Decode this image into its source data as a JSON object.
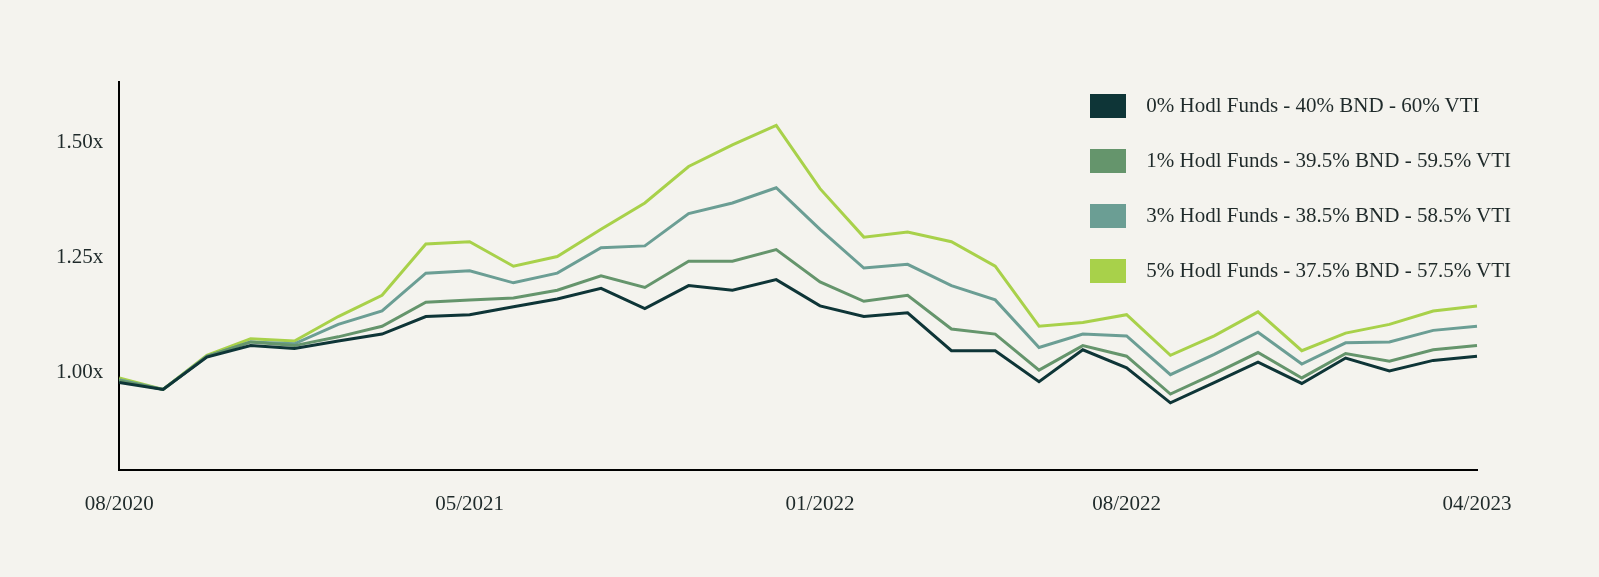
{
  "chart_data": {
    "type": "line",
    "categories": [
      "08/2020",
      null,
      null,
      null,
      null,
      null,
      null,
      null,
      "05/2021",
      null,
      null,
      null,
      null,
      null,
      null,
      null,
      "01/2022",
      null,
      null,
      null,
      null,
      null,
      null,
      "08/2022",
      null,
      null,
      null,
      null,
      null,
      null,
      null,
      "04/2023"
    ],
    "series": [
      {
        "name": "0% Hodl Funds - 40% BND - 60% VTI",
        "color": "#0e3537",
        "values": [
          0.979,
          0.964,
          1.034,
          1.059,
          1.053,
          1.069,
          1.084,
          1.122,
          1.126,
          1.143,
          1.16,
          1.183,
          1.139,
          1.189,
          1.179,
          1.202,
          1.145,
          1.122,
          1.13,
          1.048,
          1.048,
          0.981,
          1.05,
          1.011,
          0.935,
          0.979,
          1.023,
          0.977,
          1.032,
          1.004,
          1.027,
          1.036
        ]
      },
      {
        "name": "1% Hodl Funds - 39.5% BND - 59.5% VTI",
        "color": "#65956c",
        "values": [
          0.983,
          0.964,
          1.036,
          1.067,
          1.059,
          1.078,
          1.101,
          1.153,
          1.158,
          1.162,
          1.179,
          1.21,
          1.185,
          1.242,
          1.242,
          1.267,
          1.197,
          1.155,
          1.168,
          1.095,
          1.084,
          1.006,
          1.059,
          1.036,
          0.954,
          0.998,
          1.044,
          0.989,
          1.042,
          1.025,
          1.05,
          1.059
        ]
      },
      {
        "name": "3% Hodl Funds - 38.5% BND - 58.5% VTI",
        "color": "#6b9e94",
        "values": [
          0.985,
          0.964,
          1.036,
          1.067,
          1.063,
          1.105,
          1.134,
          1.216,
          1.221,
          1.195,
          1.216,
          1.271,
          1.275,
          1.345,
          1.368,
          1.401,
          1.311,
          1.227,
          1.235,
          1.189,
          1.158,
          1.055,
          1.084,
          1.08,
          0.996,
          1.04,
          1.088,
          1.019,
          1.065,
          1.067,
          1.092,
          1.101
        ]
      },
      {
        "name": "5% Hodl Funds - 37.5% BND - 57.5% VTI",
        "color": "#a8d14a",
        "values": [
          0.989,
          0.964,
          1.038,
          1.074,
          1.069,
          1.122,
          1.168,
          1.279,
          1.284,
          1.231,
          1.252,
          1.311,
          1.368,
          1.447,
          1.494,
          1.536,
          1.399,
          1.294,
          1.305,
          1.284,
          1.231,
          1.101,
          1.109,
          1.126,
          1.038,
          1.08,
          1.132,
          1.048,
          1.086,
          1.105,
          1.134,
          1.145
        ]
      }
    ],
    "ylim": [
      0.79,
      1.63
    ],
    "yticks": [
      {
        "value": 1.0,
        "label": "1.00x"
      },
      {
        "value": 1.25,
        "label": "1.25x"
      },
      {
        "value": 1.5,
        "label": "1.50x"
      }
    ],
    "grid": false,
    "legend": "upper right"
  }
}
